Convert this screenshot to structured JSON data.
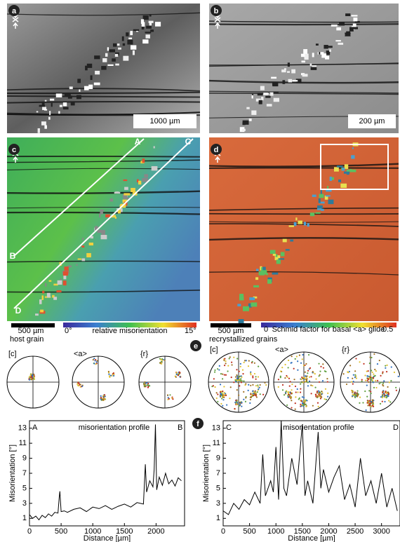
{
  "panels": {
    "a": {
      "label": "a",
      "scale": "1000 µm"
    },
    "b": {
      "label": "b",
      "scale": "200 µm"
    },
    "c": {
      "label": "c",
      "scale": "500 µm",
      "colorbar_title": "relative misorientation",
      "colorbar_min": "0°",
      "colorbar_max": "15°",
      "profiles": [
        "A",
        "B",
        "C",
        "D"
      ]
    },
    "d": {
      "label": "d",
      "scale": "500 µm",
      "colorbar_title": "Schmid factor for basal <a> glide",
      "colorbar_min": "0",
      "colorbar_max": "0.5"
    },
    "e": {
      "label": "e",
      "host_title": "host grain",
      "recryst_title": "recrystallized grains",
      "pole_labels": [
        "[c]",
        "<a>",
        "{r}"
      ]
    },
    "f": {
      "label": "f"
    }
  },
  "chart_data": [
    {
      "type": "line",
      "title": "misorientation profile",
      "annotations": [
        "A",
        "B"
      ],
      "xlabel": "Distance [µm]",
      "ylabel": "Misorientation [°]",
      "color": "#000000",
      "x": [
        0,
        50,
        100,
        150,
        200,
        250,
        300,
        350,
        400,
        450,
        470,
        480,
        500,
        550,
        600,
        700,
        800,
        900,
        1000,
        1100,
        1200,
        1300,
        1400,
        1500,
        1600,
        1700,
        1800,
        1830,
        1850,
        1900,
        1950,
        1970,
        1990,
        2010,
        2050,
        2100,
        2150,
        2200,
        2250,
        2300,
        2350,
        2400
      ],
      "values": [
        1.5,
        1.0,
        1.3,
        0.8,
        1.4,
        1.1,
        1.6,
        1.3,
        1.8,
        1.7,
        3.8,
        4.6,
        1.9,
        2.0,
        1.8,
        2.2,
        2.4,
        1.9,
        2.5,
        2.3,
        2.7,
        2.2,
        2.6,
        2.9,
        2.5,
        3.1,
        2.9,
        8.2,
        4.5,
        6.0,
        5.2,
        7.5,
        13.5,
        4.8,
        6.5,
        5.4,
        7.0,
        5.6,
        6.1,
        5.3,
        6.4,
        6.0
      ],
      "xlim": [
        0,
        2450
      ],
      "xticks": [
        0,
        500,
        1000,
        1500,
        2000
      ],
      "ylim": [
        0,
        14
      ],
      "yticks": [
        1,
        3,
        5,
        7,
        9,
        11,
        13
      ]
    },
    {
      "type": "line",
      "title": "misorientation profile",
      "annotations": [
        "C",
        "D"
      ],
      "xlabel": "Distance [µm]",
      "ylabel": "Misorientation [°]",
      "color": "#000000",
      "x": [
        0,
        100,
        200,
        300,
        400,
        500,
        600,
        700,
        750,
        800,
        900,
        950,
        1000,
        1050,
        1100,
        1150,
        1200,
        1300,
        1400,
        1500,
        1550,
        1600,
        1700,
        1800,
        1850,
        1900,
        2000,
        2100,
        2200,
        2300,
        2400,
        2500,
        2600,
        2700,
        2800,
        2900,
        3000,
        3100,
        3200,
        3300
      ],
      "values": [
        2.0,
        1.5,
        3.0,
        2.2,
        3.5,
        2.8,
        4.5,
        3.0,
        9.5,
        4.0,
        6.0,
        4.5,
        10.5,
        3.5,
        14.0,
        5.0,
        4.0,
        9.0,
        5.5,
        13.5,
        4.0,
        6.0,
        3.0,
        12.5,
        5.0,
        7.5,
        4.5,
        6.5,
        8.0,
        3.5,
        5.5,
        2.5,
        9.0,
        4.0,
        6.0,
        3.0,
        7.0,
        2.5,
        5.0,
        2.0
      ],
      "xlim": [
        0,
        3350
      ],
      "xticks": [
        0,
        500,
        1000,
        1500,
        2000,
        2500,
        3000
      ],
      "ylim": [
        0,
        14
      ],
      "yticks": [
        1,
        3,
        5,
        7,
        9,
        11,
        13
      ]
    }
  ]
}
